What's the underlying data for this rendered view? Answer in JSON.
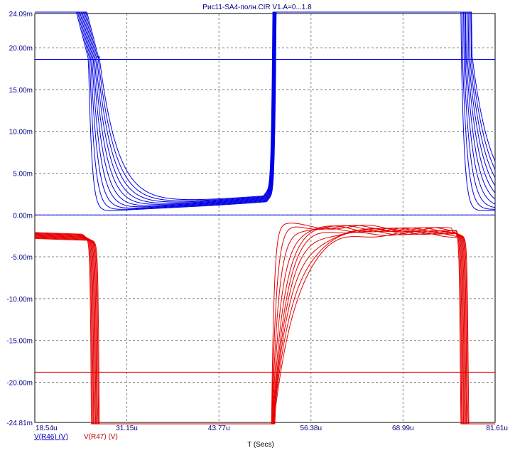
{
  "chart_data": {
    "type": "line",
    "title": "Рис11-SA4-полн.CIR V1.A=0...1.8",
    "xlabel": "T (Secs)",
    "ylabel": "",
    "xlim": [
      18.54,
      81.61
    ],
    "ylim": [
      -24.81,
      24.09
    ],
    "x_unit": "u",
    "y_unit": "m",
    "x_ticks": [
      "18.54u",
      "31.15u",
      "43.77u",
      "56.38u",
      "68.99u",
      "81.61u"
    ],
    "y_ticks": [
      "24.09m",
      "20.00m",
      "15.00m",
      "10.00m",
      "5.00m",
      "0.00m",
      "-5.00m",
      "-10.00m",
      "-15.00m",
      "-20.00m",
      "-24.81m"
    ],
    "x_tick_values": [
      18.54,
      31.15,
      43.77,
      56.38,
      68.99,
      81.61
    ],
    "y_tick_values": [
      24.09,
      20,
      15,
      10,
      5,
      0,
      -5,
      -10,
      -15,
      -20,
      -24.81
    ],
    "grid": true,
    "series": [
      {
        "name": "V(R46) (V)",
        "color": "#0000e6",
        "sweep_count": 10,
        "note_shape": "positive pulses",
        "x": [
          18.54,
          20,
          22,
          24,
          25,
          25.8,
          26.5,
          27.5,
          29,
          31,
          35,
          40,
          45,
          48,
          50,
          50.8,
          51.4,
          51.8,
          52.0
        ],
        "values": [
          24.09,
          22,
          20.5,
          19.5,
          18.6,
          12,
          5,
          1.8,
          1.0,
          0.8,
          0.6,
          0.7,
          1.0,
          1.5,
          2.2,
          3.2,
          8,
          18.6,
          24.09
        ]
      },
      {
        "name": "V(R47) (V)",
        "color": "#e60000",
        "sweep_count": 10,
        "note_shape": "negative pulses",
        "x": [
          18.54,
          20,
          22,
          24,
          25,
          25.6,
          26.0,
          26.4,
          26.8
        ],
        "values": [
          -2.3,
          -2.4,
          -2.6,
          -2.9,
          -3.2,
          -4.5,
          -10,
          -18.8,
          -24.81
        ]
      }
    ],
    "reference_lines": [
      {
        "series": "V(R46) (V)",
        "y": 18.6,
        "color": "#0000e6"
      },
      {
        "series": "V(R47) (V)",
        "y": -18.8,
        "color": "#e60000"
      }
    ],
    "legend_placement": "bottom-left"
  }
}
